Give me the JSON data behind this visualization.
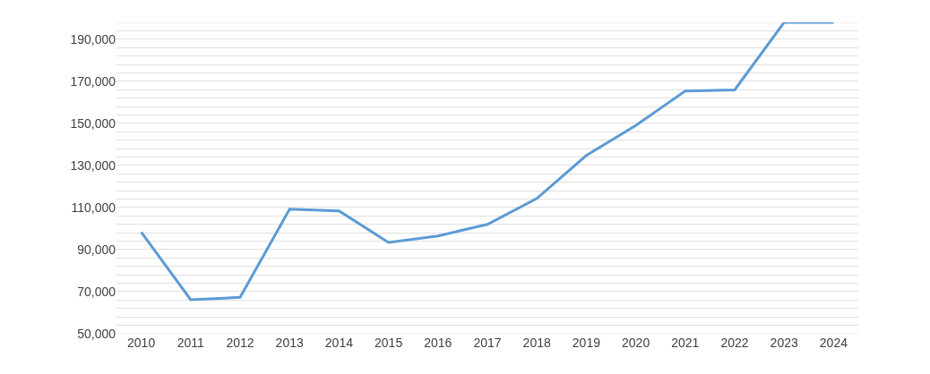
{
  "chart_data": {
    "type": "line",
    "categories": [
      "2010",
      "2011",
      "2012",
      "2013",
      "2014",
      "2015",
      "2016",
      "2017",
      "2018",
      "2019",
      "2020",
      "2021",
      "2022",
      "2023",
      "2024"
    ],
    "series": [
      {
        "color": "#5b9bd5",
        "values": [
          98300,
          66200,
          67300,
          109200,
          108400,
          93400,
          96500,
          102000,
          114300,
          134700,
          149000,
          165400,
          165900,
          198000,
          198000
        ]
      }
    ],
    "ylim": [
      50000,
      198000
    ],
    "yticks": [
      {
        "value": 50000,
        "label": "50,000"
      },
      {
        "value": 54000,
        "label": null
      },
      {
        "value": 58000,
        "label": null
      },
      {
        "value": 62000,
        "label": null
      },
      {
        "value": 66000,
        "label": null
      },
      {
        "value": 70000,
        "label": "70,000"
      },
      {
        "value": 74000,
        "label": null
      },
      {
        "value": 78000,
        "label": null
      },
      {
        "value": 82000,
        "label": null
      },
      {
        "value": 86000,
        "label": null
      },
      {
        "value": 90000,
        "label": "90,000"
      },
      {
        "value": 94000,
        "label": null
      },
      {
        "value": 98000,
        "label": null
      },
      {
        "value": 102000,
        "label": null
      },
      {
        "value": 106000,
        "label": null
      },
      {
        "value": 110000,
        "label": "110,000"
      },
      {
        "value": 114000,
        "label": null
      },
      {
        "value": 118000,
        "label": null
      },
      {
        "value": 122000,
        "label": null
      },
      {
        "value": 126000,
        "label": null
      },
      {
        "value": 130000,
        "label": "130,000"
      },
      {
        "value": 134000,
        "label": null
      },
      {
        "value": 138000,
        "label": null
      },
      {
        "value": 142000,
        "label": null
      },
      {
        "value": 146000,
        "label": null
      },
      {
        "value": 150000,
        "label": "150,000"
      },
      {
        "value": 154000,
        "label": null
      },
      {
        "value": 158000,
        "label": null
      },
      {
        "value": 162000,
        "label": null
      },
      {
        "value": 166000,
        "label": null
      },
      {
        "value": 170000,
        "label": "170,000"
      },
      {
        "value": 174000,
        "label": null
      },
      {
        "value": 178000,
        "label": null
      },
      {
        "value": 182000,
        "label": null
      },
      {
        "value": 186000,
        "label": null
      },
      {
        "value": 190000,
        "label": "190,000"
      },
      {
        "value": 194000,
        "label": null
      },
      {
        "value": 198000,
        "label": null
      }
    ],
    "grid": "y",
    "legend": false,
    "marker": "none",
    "line_style": "solid"
  }
}
